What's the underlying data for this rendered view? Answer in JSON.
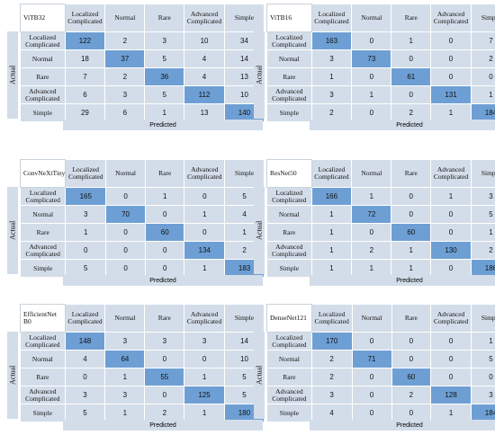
{
  "axis": {
    "actual": "Actual",
    "predicted": "Predicted"
  },
  "labels": [
    "Localized Complicated",
    "Normal",
    "Rare",
    "Advanced Complicated",
    "Simple"
  ],
  "chart_data": [
    {
      "type": "heatmap",
      "title": "ViTB32",
      "rows": [
        "Localized Complicated",
        "Normal",
        "Rare",
        "Advanced Complicated",
        "Simple"
      ],
      "cols": [
        "Localized Complicated",
        "Normal",
        "Rare",
        "Advanced Complicated",
        "Simple"
      ],
      "ylabel": "Actual",
      "xlabel": "Predicted",
      "values": [
        [
          122,
          2,
          3,
          10,
          34
        ],
        [
          18,
          37,
          5,
          4,
          14
        ],
        [
          7,
          2,
          36,
          4,
          13
        ],
        [
          6,
          3,
          5,
          112,
          10
        ],
        [
          29,
          6,
          1,
          13,
          140
        ]
      ]
    },
    {
      "type": "heatmap",
      "title": "ViTB16",
      "rows": [
        "Localized Complicated",
        "Normal",
        "Rare",
        "Advanced Complicated",
        "Simple"
      ],
      "cols": [
        "Localized Complicated",
        "Normal",
        "Rare",
        "Advanced Complicated",
        "Simple"
      ],
      "ylabel": "Actual",
      "xlabel": "Predicted",
      "values": [
        [
          163,
          0,
          1,
          0,
          7
        ],
        [
          3,
          73,
          0,
          0,
          2
        ],
        [
          1,
          0,
          61,
          0,
          0
        ],
        [
          3,
          1,
          0,
          131,
          1
        ],
        [
          2,
          0,
          2,
          1,
          184
        ]
      ]
    },
    {
      "type": "heatmap",
      "title": "ConvNeXtTiny",
      "rows": [
        "Localized Complicated",
        "Normal",
        "Rare",
        "Advanced Complicated",
        "Simple"
      ],
      "cols": [
        "Localized Complicated",
        "Normal",
        "Rare",
        "Advanced Complicated",
        "Simple"
      ],
      "ylabel": "Actual",
      "xlabel": "Predicted",
      "values": [
        [
          165,
          0,
          1,
          0,
          5
        ],
        [
          3,
          70,
          0,
          1,
          4
        ],
        [
          1,
          0,
          60,
          0,
          1
        ],
        [
          0,
          0,
          0,
          134,
          2
        ],
        [
          5,
          0,
          0,
          1,
          183
        ]
      ]
    },
    {
      "type": "heatmap",
      "title": "ResNet50",
      "rows": [
        "Localized Complicated",
        "Normal",
        "Rare",
        "Advanced Complicated",
        "Simple"
      ],
      "cols": [
        "Localized Complicated",
        "Normal",
        "Rare",
        "Advanced Complicated",
        "Simple"
      ],
      "ylabel": "Actual",
      "xlabel": "Predicted",
      "values": [
        [
          166,
          1,
          0,
          1,
          3
        ],
        [
          1,
          72,
          0,
          0,
          5
        ],
        [
          1,
          0,
          60,
          0,
          1
        ],
        [
          1,
          2,
          1,
          130,
          2
        ],
        [
          1,
          1,
          1,
          0,
          186
        ]
      ]
    },
    {
      "type": "heatmap",
      "title": "EfficientNet B0",
      "rows": [
        "Localized Complicated",
        "Normal",
        "Rare",
        "Advanced Complicated",
        "Simple"
      ],
      "cols": [
        "Localized Complicated",
        "Normal",
        "Rare",
        "Advanced Complicated",
        "Simple"
      ],
      "ylabel": "Actual",
      "xlabel": "Predicted",
      "values": [
        [
          148,
          3,
          3,
          3,
          14
        ],
        [
          4,
          64,
          0,
          0,
          10
        ],
        [
          0,
          1,
          55,
          1,
          5
        ],
        [
          3,
          3,
          0,
          125,
          5
        ],
        [
          5,
          1,
          2,
          1,
          180
        ]
      ]
    },
    {
      "type": "heatmap",
      "title": "DenseNet121",
      "rows": [
        "Localized Complicated",
        "Normal",
        "Rare",
        "Advanced Complicated",
        "Simple"
      ],
      "cols": [
        "Localized Complicated",
        "Normal",
        "Rare",
        "Advanced Complicated",
        "Simple"
      ],
      "ylabel": "Actual",
      "xlabel": "Predicted",
      "values": [
        [
          170,
          0,
          0,
          0,
          1
        ],
        [
          2,
          71,
          0,
          0,
          5
        ],
        [
          2,
          0,
          60,
          0,
          0
        ],
        [
          3,
          0,
          2,
          128,
          3
        ],
        [
          4,
          0,
          0,
          1,
          184
        ]
      ]
    }
  ]
}
